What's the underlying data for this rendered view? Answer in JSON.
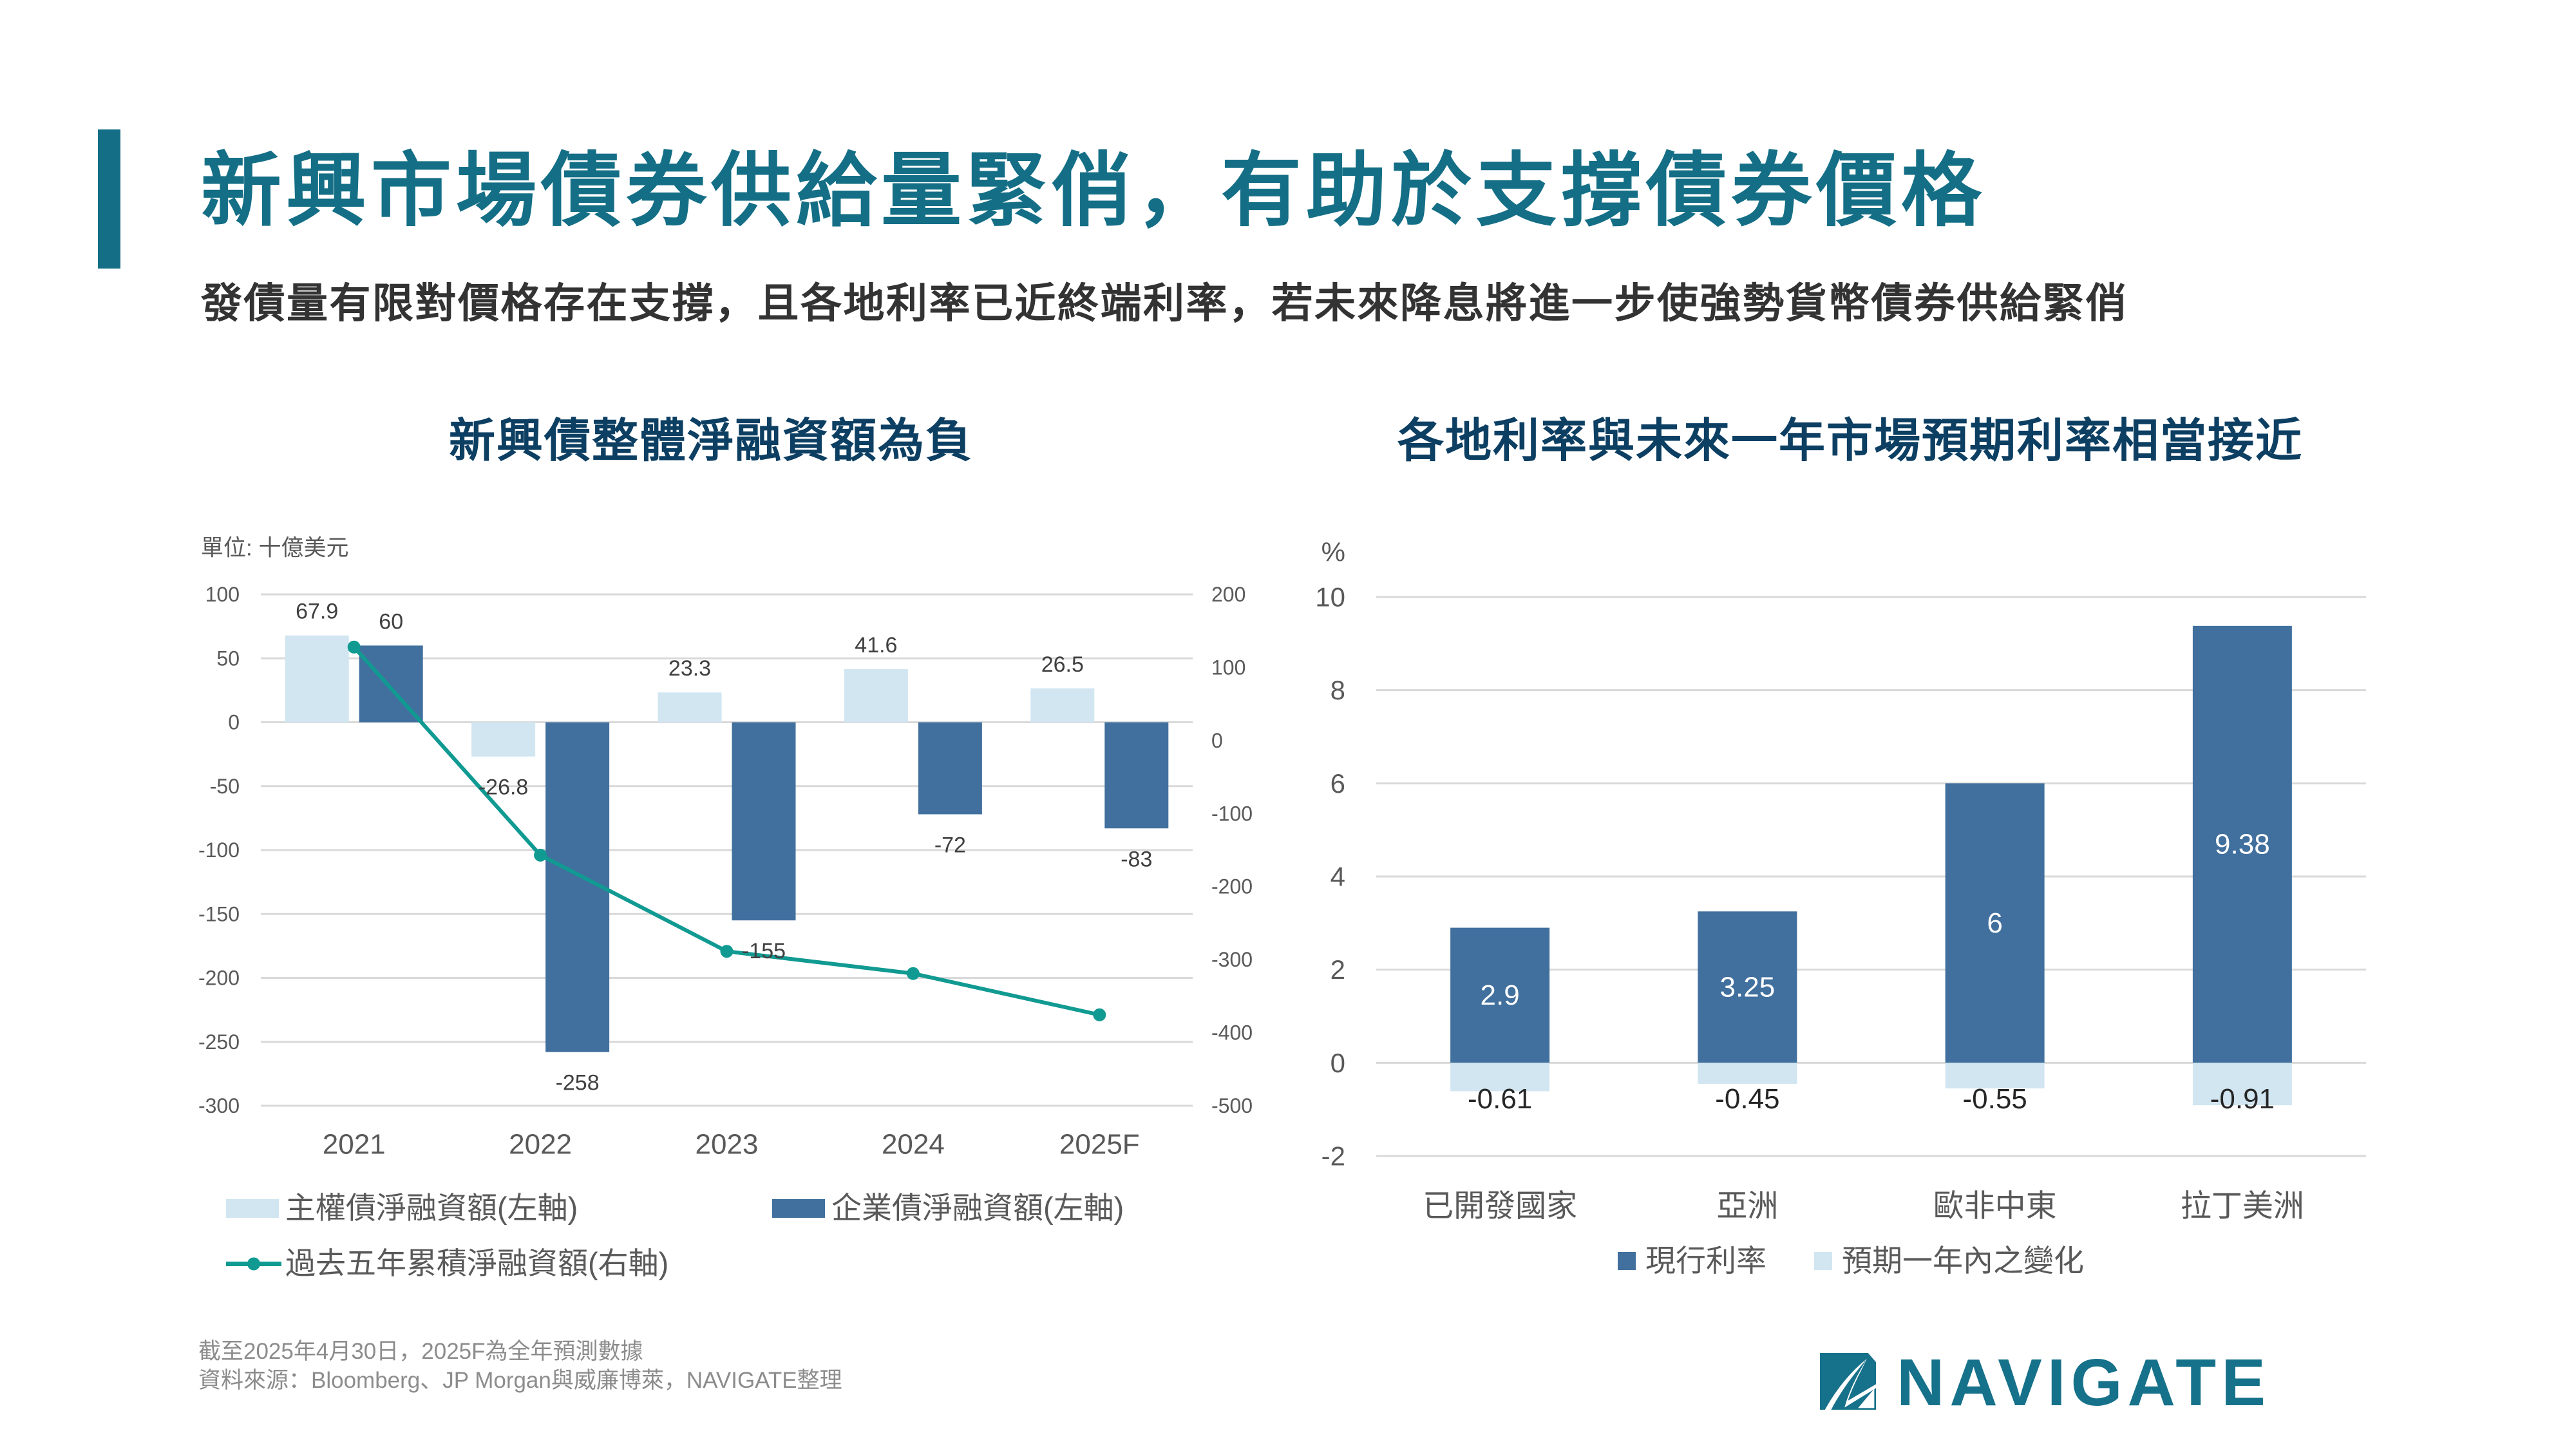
{
  "colors": {
    "accent": "#146f86",
    "chart_title": "#0d3f63",
    "subtitle": "#333333",
    "axis_text": "#595959",
    "footer_text": "#8c8c8c",
    "gridline": "#d9d9d9",
    "logo": "#16718a"
  },
  "header": {
    "title": "新興市場債券供給量緊俏，有助於支撐債券價格",
    "subtitle": "發債量有限對價格存在支撐，且各地利率已近終端利率，若未來降息將進一步使強勢貨幣債券供給緊俏"
  },
  "chart_data": [
    {
      "type": "bar",
      "combo": "bar + line, dual axis",
      "title": "新興債整體淨融資額為負",
      "unit_label": "單位: 十億美元",
      "xlabel": "",
      "ylabel": "",
      "categories": [
        "2021",
        "2022",
        "2023",
        "2024",
        "2025F"
      ],
      "series": [
        {
          "name": "主權債淨融資額(左軸)",
          "type": "bar",
          "axis": "left",
          "color": "#d1e6f1",
          "values": [
            67.9,
            -26.8,
            23.3,
            41.6,
            26.5
          ]
        },
        {
          "name": "企業債淨融資額(左軸)",
          "type": "bar",
          "axis": "left",
          "color": "#41709e",
          "values": [
            60,
            -258,
            -155,
            -72,
            -83
          ]
        },
        {
          "name": "過去五年累積淨融資額(右軸)",
          "type": "line",
          "axis": "right",
          "color": "#109a92",
          "marker": "circle",
          "values": [
            127.9,
            -156.9,
            -288.6,
            -319.0,
            -375.5
          ]
        }
      ],
      "y_left": {
        "ylim": [
          -300,
          100
        ],
        "ticks": [
          100,
          50,
          0,
          -50,
          -100,
          -150,
          -200,
          -250,
          -300
        ]
      },
      "y_right": {
        "ylim": [
          -500,
          200
        ],
        "ticks": [
          200,
          100,
          0,
          -100,
          -200,
          -300,
          -400,
          -500
        ]
      },
      "grid": true,
      "legend": "bottom"
    },
    {
      "type": "bar",
      "stacked": true,
      "title": "各地利率與未來一年市場預期利率相當接近",
      "ylabel": "%",
      "xlabel": "",
      "categories": [
        "已開發國家",
        "亞洲",
        "歐非中東",
        "拉丁美洲"
      ],
      "series": [
        {
          "name": "現行利率",
          "color": "#41709e",
          "values": [
            2.9,
            3.25,
            6,
            9.38
          ]
        },
        {
          "name": "預期一年內之變化",
          "color": "#d1e6f1",
          "values": [
            -0.61,
            -0.45,
            -0.55,
            -0.91
          ]
        }
      ],
      "ylim": [
        -2,
        10
      ],
      "ticks": [
        10,
        8,
        6,
        4,
        2,
        0,
        -2
      ],
      "grid": true,
      "legend": "bottom"
    }
  ],
  "footer": {
    "note": "截至2025年4月30日，2025F為全年預測數據",
    "source": "資料來源：Bloomberg、JP Morgan與威廉博萊，NAVIGATE整理"
  },
  "logo": {
    "text": "NAVIGATE",
    "icon": "navigate-sail-icon"
  }
}
